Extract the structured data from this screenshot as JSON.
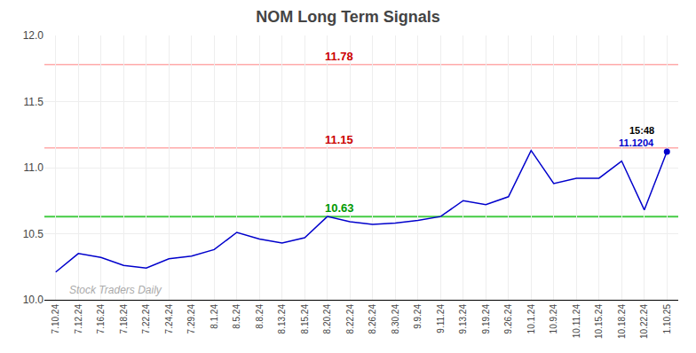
{
  "chart_data": {
    "type": "line",
    "title": "NOM Long Term Signals",
    "categories": [
      "7.10.24",
      "7.12.24",
      "7.16.24",
      "7.18.24",
      "7.22.24",
      "7.24.24",
      "7.29.24",
      "8.1.24",
      "8.5.24",
      "8.8.24",
      "8.13.24",
      "8.15.24",
      "8.20.24",
      "8.22.24",
      "8.26.24",
      "8.30.24",
      "9.9.24",
      "9.11.24",
      "9.13.24",
      "9.19.24",
      "9.26.24",
      "10.1.24",
      "10.9.24",
      "10.11.24",
      "10.15.24",
      "10.18.24",
      "10.22.24",
      "1.10.25"
    ],
    "values": [
      10.21,
      10.35,
      10.32,
      10.26,
      10.24,
      10.31,
      10.33,
      10.38,
      10.51,
      10.46,
      10.43,
      10.47,
      10.63,
      10.59,
      10.57,
      10.58,
      10.6,
      10.63,
      10.75,
      10.72,
      10.78,
      11.13,
      10.88,
      10.92,
      10.92,
      11.05,
      10.68,
      11.1204
    ],
    "color": "#0000cc",
    "ylim": [
      10,
      12
    ],
    "yticks": [
      {
        "value": 10,
        "label": "10.0"
      },
      10.5,
      {
        "value": 11,
        "label": "11.0"
      },
      11.5,
      {
        "value": 12,
        "label": "12.0"
      }
    ],
    "grid": true,
    "hlines": [
      {
        "value": 11.78,
        "label": "11.78",
        "color": "#ffaaaa",
        "label_color": "#cc0000"
      },
      {
        "value": 11.15,
        "label": "11.15",
        "color": "#ffaaaa",
        "label_color": "#cc0000"
      },
      {
        "value": 10.63,
        "label": "10.63",
        "color": "#44cc44",
        "label_color": "#009900"
      }
    ],
    "annotations": [
      "15:48",
      "11.1204"
    ],
    "watermark": {
      "text": "Stock Traders Daily",
      "color": "#aaaaaa"
    }
  }
}
